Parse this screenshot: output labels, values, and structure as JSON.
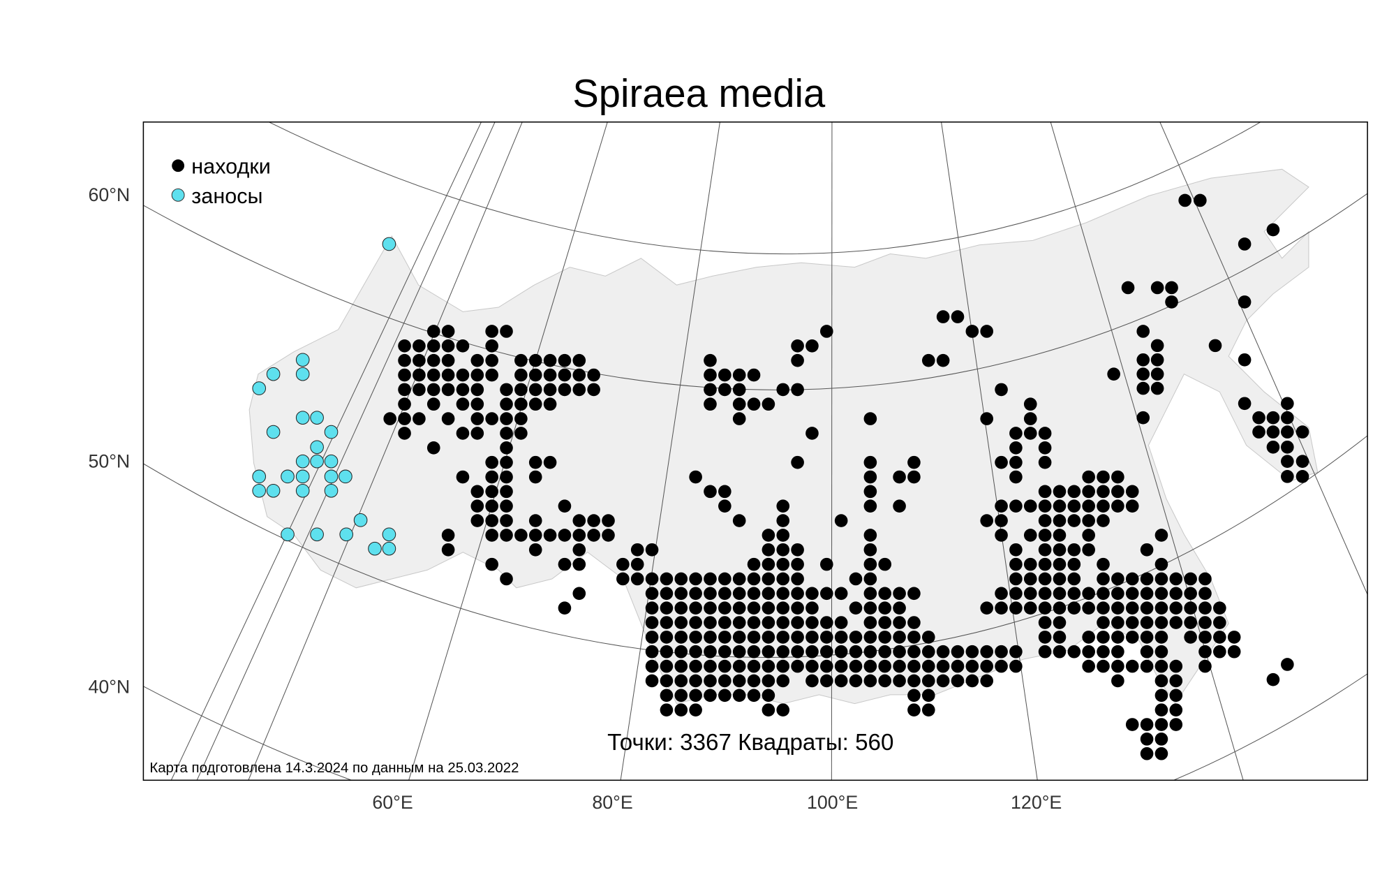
{
  "title": "Spiraea media",
  "legend": {
    "items": [
      {
        "label": "находки",
        "color": "#000000"
      },
      {
        "label": "заносы",
        "color": "#5ee0ee"
      }
    ]
  },
  "lat_labels": [
    "60°N",
    "50°N",
    "40°N"
  ],
  "lon_labels": [
    "60°E",
    "80°E",
    "100°E",
    "120°E"
  ],
  "stats": "Точки: 3367 Квадраты: 560",
  "note": "Карта подготовлена 14.3.2024 по данным на 25.03.2022"
}
